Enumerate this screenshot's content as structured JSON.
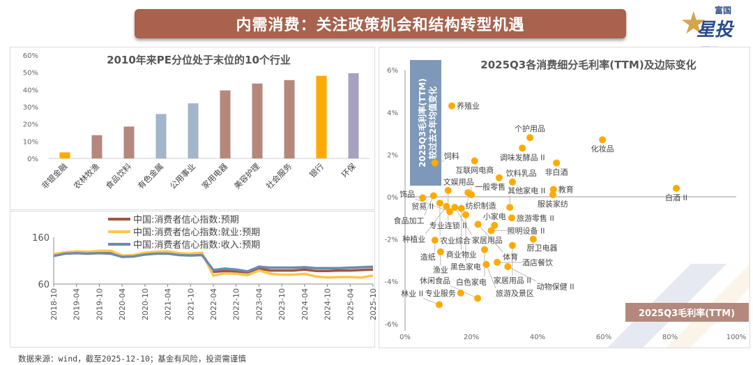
{
  "header": {
    "title": "内需消费：关注政策机会和结构转型机遇",
    "logo_text": "富国 星投顾"
  },
  "footer": "数据来源：wind，截至2025-12-10；基金有风险，投资需谨慎",
  "chart_data": [
    {
      "type": "bar",
      "title": "2010年来PE分位处于末位的10个行业",
      "categories": [
        "非银金融",
        "农林牧渔",
        "食品饮料",
        "有色金属",
        "公用事业",
        "家用电器",
        "美容护理",
        "社会服务",
        "银行",
        "环保"
      ],
      "values": [
        3.5,
        13.5,
        18.5,
        25.8,
        32,
        39.5,
        43.5,
        45.5,
        48,
        49.5
      ],
      "colors": [
        "#FFAA00",
        "#B4887C",
        "#B4887C",
        "#A2B5CB",
        "#A2B5CB",
        "#B4887C",
        "#B4887C",
        "#B4887C",
        "#FFAA00",
        "#A8A0C0"
      ],
      "ylim": [
        0,
        60
      ],
      "yticks": [
        "0%",
        "10%",
        "20%",
        "30%",
        "40%",
        "50%",
        "60%"
      ],
      "grid": false
    },
    {
      "type": "line",
      "x": [
        "2018-10",
        "2019-01",
        "2019-04",
        "2019-07",
        "2019-10",
        "2020-01",
        "2020-04",
        "2020-07",
        "2020-10",
        "2021-01",
        "2021-04",
        "2021-07",
        "2021-10",
        "2022-01",
        "2022-04",
        "2022-07",
        "2022-10",
        "2023-01",
        "2023-04",
        "2023-07",
        "2023-10",
        "2024-01",
        "2024-04",
        "2024-07",
        "2024-10",
        "2025-01",
        "2025-04",
        "2025-07",
        "2025-10"
      ],
      "xticks": [
        "2018-10",
        "2019-04",
        "2019-10",
        "2020-04",
        "2020-10",
        "2021-04",
        "2021-10",
        "2022-04",
        "2022-10",
        "2023-04",
        "2023-10",
        "2024-04",
        "2024-10",
        "2025-04",
        "2025-10"
      ],
      "ylim": [
        60,
        160
      ],
      "yticks": [
        "60",
        "160"
      ],
      "legend": "top",
      "series": [
        {
          "name": "中国:消费者信心指数:预期",
          "color": "#A0553F",
          "values": [
            122,
            126,
            128,
            127,
            129,
            128,
            120,
            121,
            125,
            127,
            127,
            125,
            124,
            125,
            86,
            88,
            87,
            85,
            93,
            89,
            89,
            89,
            91,
            88,
            88,
            89,
            89,
            90,
            91
          ]
        },
        {
          "name": "中国:消费者信心指数:就业:预期",
          "color": "#FFC44D",
          "values": [
            124,
            128,
            130,
            129,
            131,
            131,
            121,
            122,
            127,
            129,
            130,
            126,
            125,
            127,
            78,
            83,
            82,
            79,
            89,
            82,
            80,
            80,
            82,
            76,
            74,
            75,
            75,
            74,
            78
          ]
        },
        {
          "name": "中国:消费者信心指数:收入:预期",
          "color": "#6A8BB0",
          "values": [
            120,
            125,
            126,
            125,
            126,
            125,
            118,
            119,
            123,
            125,
            125,
            122,
            121,
            122,
            90,
            93,
            91,
            87,
            97,
            95,
            95,
            95,
            96,
            94,
            94,
            94,
            95,
            96,
            97
          ]
        }
      ]
    },
    {
      "type": "scatter",
      "title": "2025Q3各消费细分毛利率(TTM)及边际变化",
      "xlabel": "2025Q3毛利率(TTM)",
      "ylabel": "2025Q3毛利率(TTM)较过去2年均值变化",
      "xlim": [
        0,
        100
      ],
      "ylim": [
        -6,
        6
      ],
      "xticks": [
        "0%",
        "20%",
        "40%",
        "60%",
        "80%",
        "100%"
      ],
      "yticks": [
        "-6%",
        "-4%",
        "-2%",
        "0%",
        "2%",
        "4%",
        "6%"
      ],
      "color": "#FFAA00",
      "points": [
        {
          "label": "养殖业",
          "x": 14.1,
          "y": 4.3
        },
        {
          "label": "个护用品",
          "x": 37.7,
          "y": 2.8
        },
        {
          "label": "调味发酵品 II",
          "x": 35.4,
          "y": 2.3
        },
        {
          "label": "化妆品",
          "x": 59.6,
          "y": 2.7
        },
        {
          "label": "互联网电商",
          "x": 21,
          "y": 1.7
        },
        {
          "label": "饲料",
          "x": 9,
          "y": 1.6
        },
        {
          "label": "非白酒",
          "x": 45.7,
          "y": 1.6
        },
        {
          "label": "一般零售",
          "x": 28.4,
          "y": 0.9
        },
        {
          "label": "饮料乳品",
          "x": 32.4,
          "y": 0.7
        },
        {
          "label": "教育",
          "x": 44.8,
          "y": 0.35
        },
        {
          "label": "服装家纺",
          "x": 44.6,
          "y": 0.1
        },
        {
          "label": "白酒 II",
          "x": 81.9,
          "y": 0.4
        },
        {
          "label": "专业连锁 II",
          "x": 13,
          "y": 0.3
        },
        {
          "label": "贸易 II",
          "x": 5.3,
          "y": -0.05
        },
        {
          "label": "食品加工",
          "x": 8.6,
          "y": 0.05
        },
        {
          "label": "纺织制造",
          "x": 19,
          "y": 0.2
        },
        {
          "label": "文娱用品",
          "x": 20,
          "y": 0.1
        },
        {
          "label": "农业综合",
          "x": 10.5,
          "y": -0.3
        },
        {
          "label": "种植业",
          "x": 12.5,
          "y": -0.45
        },
        {
          "label": "家居用品",
          "x": 15,
          "y": -0.5
        },
        {
          "label": "商业物业",
          "x": 17,
          "y": -0.55
        },
        {
          "label": "饰品",
          "x": 13.5,
          "y": -0.7
        },
        {
          "label": "其他家电 II",
          "x": 31.6,
          "y": -0.5
        },
        {
          "label": "黑色家电",
          "x": 18.3,
          "y": -0.85
        },
        {
          "label": "旅游零售 II",
          "x": 32.2,
          "y": -1.0
        },
        {
          "label": "体育",
          "x": 22,
          "y": -1.3
        },
        {
          "label": "小家电",
          "x": 27,
          "y": -1.35
        },
        {
          "label": "照明设备 II",
          "x": 26,
          "y": -1.6
        },
        {
          "label": "厨卫电器",
          "x": 38.7,
          "y": -2.0
        },
        {
          "label": "家居用品 II",
          "x": 32.4,
          "y": -2.3
        },
        {
          "label": "造纸",
          "x": 9,
          "y": -2.05
        },
        {
          "label": "渔业",
          "x": 10.7,
          "y": -2.6
        },
        {
          "label": "白色家电",
          "x": 24,
          "y": -2.5
        },
        {
          "label": "酒店餐饮",
          "x": 27.8,
          "y": -3.1
        },
        {
          "label": "旅游及景区",
          "x": 24.5,
          "y": -3.2
        },
        {
          "label": "动物保健 II",
          "x": 31,
          "y": -3.3
        },
        {
          "label": "专业服务",
          "x": 16.8,
          "y": -4.55
        },
        {
          "label": "休闲食品",
          "x": 21.9,
          "y": -4.8
        },
        {
          "label": "林业 II",
          "x": 10.3,
          "y": -5.1
        }
      ]
    }
  ]
}
